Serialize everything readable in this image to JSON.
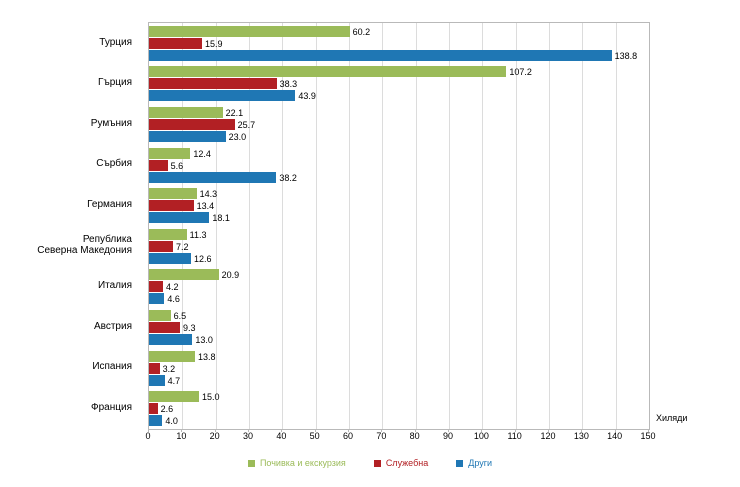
{
  "chart_data": {
    "type": "bar",
    "orientation": "horizontal",
    "title": "",
    "categories": [
      "Турция",
      "Гърция",
      "Румъния",
      "Сърбия",
      "Германия",
      "Република\nСеверна Македония",
      "Италия",
      "Австрия",
      "Испания",
      "Франция"
    ],
    "series": [
      {
        "name": "Почивка и екскурзия",
        "color": "#9BBB59",
        "values": [
          60.2,
          107.2,
          22.1,
          12.4,
          14.3,
          11.3,
          20.9,
          6.5,
          13.8,
          15.0
        ]
      },
      {
        "name": "Служебна",
        "color": "#B22024",
        "values": [
          15.9,
          38.3,
          25.7,
          5.6,
          13.4,
          7.2,
          4.2,
          9.3,
          3.2,
          2.6
        ]
      },
      {
        "name": "Други",
        "color": "#1F77B4",
        "values": [
          138.8,
          43.9,
          23.0,
          38.2,
          18.1,
          12.6,
          4.6,
          13.0,
          4.7,
          4.0
        ]
      }
    ],
    "xlim": [
      0,
      150
    ],
    "x_ticks": [
      0,
      10,
      20,
      30,
      40,
      50,
      60,
      70,
      80,
      90,
      100,
      110,
      120,
      130,
      140,
      150
    ],
    "x_axis_label": "Хиляди",
    "value_label_decimals": 1,
    "grid": "vertical",
    "legend_position": "bottom"
  }
}
